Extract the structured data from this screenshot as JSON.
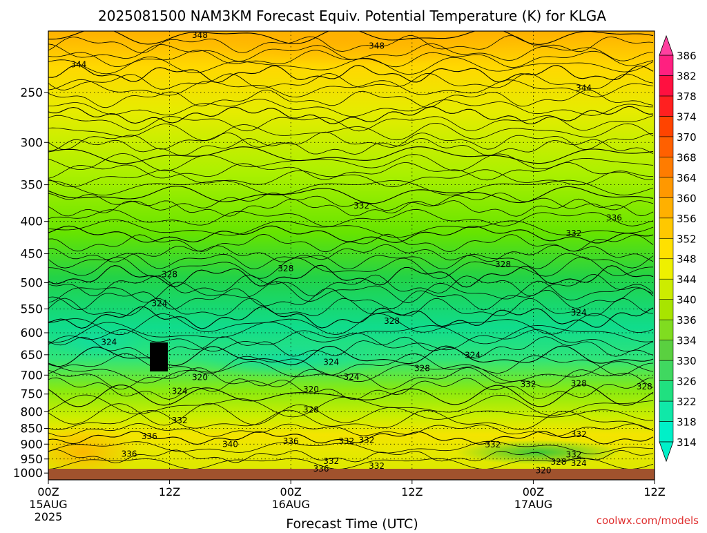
{
  "chart_data": {
    "type": "heatmap",
    "title": "2025081500 NAM3KM Forecast Equiv. Potential Temperature (K) for KLGA",
    "xlabel": "Forecast Time (UTC)",
    "ylabel": "",
    "credit": "coolwx.com/models",
    "y_axis": {
      "scale": "log",
      "range": [
        200,
        1025
      ],
      "ticks": [
        "250",
        "300",
        "350",
        "400",
        "450",
        "500",
        "550",
        "600",
        "650",
        "700",
        "750",
        "800",
        "850",
        "900",
        "950",
        "1000"
      ]
    },
    "x_axis": {
      "range": [
        0,
        60
      ],
      "ticks": [
        {
          "hour": 0,
          "label": "00Z",
          "date": "15AUG",
          "year": "2025"
        },
        {
          "hour": 12,
          "label": "12Z",
          "date": "",
          "year": ""
        },
        {
          "hour": 24,
          "label": "00Z",
          "date": "16AUG",
          "year": ""
        },
        {
          "hour": 36,
          "label": "12Z",
          "date": "",
          "year": ""
        },
        {
          "hour": 48,
          "label": "00Z",
          "date": "17AUG",
          "year": ""
        },
        {
          "hour": 60,
          "label": "12Z",
          "date": "",
          "year": ""
        }
      ]
    },
    "grid": true,
    "colorbar": {
      "unit": "K",
      "levels": [
        "314",
        "318",
        "322",
        "326",
        "330",
        "334",
        "336",
        "340",
        "344",
        "348",
        "352",
        "356",
        "360",
        "364",
        "368",
        "370",
        "374",
        "378",
        "382",
        "386"
      ]
    },
    "contour_labels": [
      {
        "text": "348",
        "hour": 15.0,
        "p": 203
      },
      {
        "text": "348",
        "hour": 32.5,
        "p": 211
      },
      {
        "text": "344",
        "hour": 3.0,
        "p": 226
      },
      {
        "text": "344",
        "hour": 53.0,
        "p": 246
      },
      {
        "text": "332",
        "hour": 31.0,
        "p": 378
      },
      {
        "text": "336",
        "hour": 56.0,
        "p": 395
      },
      {
        "text": "332",
        "hour": 52.0,
        "p": 418
      },
      {
        "text": "328",
        "hour": 12.0,
        "p": 485
      },
      {
        "text": "328",
        "hour": 23.5,
        "p": 475
      },
      {
        "text": "328",
        "hour": 45.0,
        "p": 468
      },
      {
        "text": "324",
        "hour": 11.0,
        "p": 539
      },
      {
        "text": "328",
        "hour": 34.0,
        "p": 575
      },
      {
        "text": "324",
        "hour": 52.5,
        "p": 558
      },
      {
        "text": "324",
        "hour": 6.0,
        "p": 621
      },
      {
        "text": "324",
        "hour": 28.0,
        "p": 668
      },
      {
        "text": "324",
        "hour": 42.0,
        "p": 651
      },
      {
        "text": "328",
        "hour": 37.0,
        "p": 683
      },
      {
        "text": "320",
        "hour": 15.0,
        "p": 706
      },
      {
        "text": "324",
        "hour": 30.0,
        "p": 705
      },
      {
        "text": "324",
        "hour": 13.0,
        "p": 742
      },
      {
        "text": "320",
        "hour": 26.0,
        "p": 737
      },
      {
        "text": "332",
        "hour": 47.5,
        "p": 724
      },
      {
        "text": "328",
        "hour": 52.5,
        "p": 722
      },
      {
        "text": "328",
        "hour": 59.0,
        "p": 730
      },
      {
        "text": "328",
        "hour": 26.0,
        "p": 794
      },
      {
        "text": "332",
        "hour": 13.0,
        "p": 826
      },
      {
        "text": "336",
        "hour": 10.0,
        "p": 875
      },
      {
        "text": "340",
        "hour": 18.0,
        "p": 900
      },
      {
        "text": "336",
        "hour": 24.0,
        "p": 890
      },
      {
        "text": "332",
        "hour": 29.5,
        "p": 890
      },
      {
        "text": "332",
        "hour": 31.5,
        "p": 887
      },
      {
        "text": "332",
        "hour": 44.0,
        "p": 902
      },
      {
        "text": "332",
        "hour": 52.5,
        "p": 868
      },
      {
        "text": "336",
        "hour": 8.0,
        "p": 933
      },
      {
        "text": "332",
        "hour": 28.0,
        "p": 958
      },
      {
        "text": "332",
        "hour": 52.0,
        "p": 935
      },
      {
        "text": "328",
        "hour": 50.5,
        "p": 960
      },
      {
        "text": "324",
        "hour": 52.5,
        "p": 965
      },
      {
        "text": "336",
        "hour": 27.0,
        "p": 985
      },
      {
        "text": "332",
        "hour": 32.5,
        "p": 975
      },
      {
        "text": "320",
        "hour": 49.0,
        "p": 991
      }
    ]
  }
}
